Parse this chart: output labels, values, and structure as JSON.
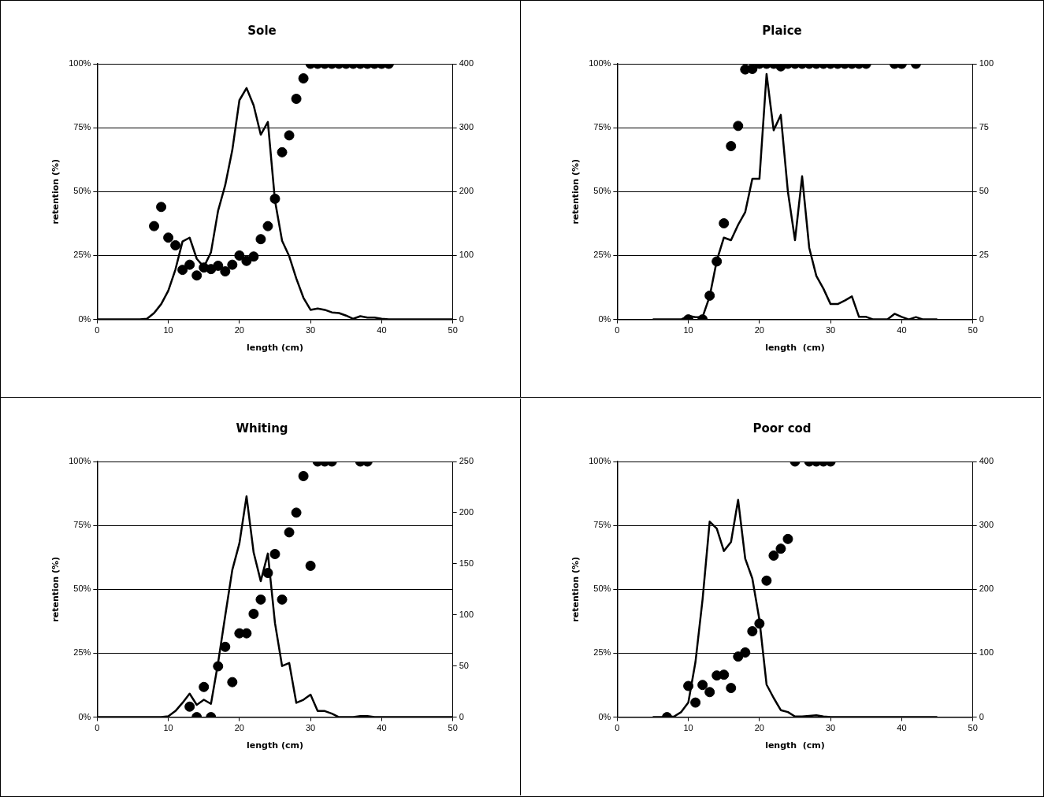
{
  "chart_data": [
    {
      "type": "scatter",
      "title": "Sole",
      "xlabel": "length (cm)",
      "ylabel": "retention (%)",
      "xlim": [
        0,
        50
      ],
      "xticks": [
        0,
        10,
        20,
        30,
        40,
        50
      ],
      "ylim": [
        0,
        100
      ],
      "yticks": [
        {
          "value": 0,
          "label": "0%"
        },
        {
          "value": 25,
          "label": "25%"
        },
        {
          "value": 50,
          "label": "50%"
        },
        {
          "value": 75,
          "label": "75%"
        },
        {
          "value": 100,
          "label": "100%"
        }
      ],
      "y2lim": [
        0,
        400
      ],
      "y2ticks": [
        0,
        100,
        200,
        300,
        400
      ],
      "grid": "y",
      "legend": false,
      "series": [
        {
          "type": "scatter",
          "color": "#000000",
          "marker": "circle",
          "x": [
            8,
            9,
            10,
            11,
            12,
            13,
            14,
            15,
            16,
            17,
            18,
            19,
            20,
            21,
            22,
            23,
            24,
            25,
            26,
            27,
            28,
            29,
            30,
            31,
            32,
            33,
            34,
            35,
            36,
            37,
            38,
            39,
            40,
            41
          ],
          "values": [
            36.5,
            44,
            32,
            29,
            19.4,
            21.4,
            17.2,
            20.3,
            19.7,
            21,
            18.8,
            21.4,
            25,
            22.9,
            24.6,
            31.4,
            36.5,
            47.2,
            65.4,
            72,
            86.3,
            94.3,
            100,
            100,
            100,
            100,
            100,
            100,
            100,
            100,
            100,
            100,
            100,
            100
          ]
        },
        {
          "type": "line",
          "axis": "y2",
          "color": "#000000",
          "marker": "none",
          "x": [
            0,
            6,
            7,
            8,
            9,
            10,
            11,
            12,
            13,
            14,
            15,
            16,
            17,
            18,
            19,
            20,
            21,
            22,
            23,
            24,
            25,
            26,
            27,
            28,
            29,
            30,
            31,
            32,
            33,
            34,
            35,
            36,
            37,
            38,
            39,
            40,
            41,
            45,
            50
          ],
          "values": [
            0,
            0,
            1,
            10,
            24,
            45,
            78,
            122,
            128,
            95,
            82,
            105,
            170,
            210,
            265,
            343,
            362,
            335,
            289,
            309,
            186,
            123,
            99,
            64,
            34,
            15,
            17,
            15,
            11,
            10,
            6,
            1,
            5,
            3,
            3,
            1,
            0,
            0,
            0
          ]
        }
      ]
    },
    {
      "type": "scatter",
      "title": "Plaice",
      "xlabel": "length  (cm)",
      "ylabel": "retention (%)",
      "xlim": [
        0,
        50
      ],
      "xticks": [
        0,
        10,
        20,
        30,
        40,
        50
      ],
      "ylim": [
        0,
        100
      ],
      "yticks": [
        {
          "value": 0,
          "label": "0%"
        },
        {
          "value": 25,
          "label": "25%"
        },
        {
          "value": 50,
          "label": "50%"
        },
        {
          "value": 75,
          "label": "75%"
        },
        {
          "value": 100,
          "label": "100%"
        }
      ],
      "y2lim": [
        0,
        100
      ],
      "y2ticks": [
        0,
        25,
        50,
        75,
        100
      ],
      "grid": "y",
      "legend": false,
      "series": [
        {
          "type": "scatter",
          "color": "#000000",
          "marker": "circle",
          "x": [
            10,
            12,
            13,
            14,
            15,
            16,
            17,
            18,
            19,
            20,
            21,
            22,
            23,
            24,
            25,
            26,
            27,
            28,
            29,
            30,
            31,
            32,
            33,
            34,
            35,
            39,
            40,
            42
          ],
          "values": [
            0,
            0,
            9.3,
            22.7,
            37.6,
            67.8,
            75.7,
            97.8,
            98,
            100,
            100,
            100,
            99,
            100,
            100,
            100,
            100,
            100,
            100,
            100,
            100,
            100,
            100,
            100,
            100,
            100,
            100,
            100
          ]
        },
        {
          "type": "line",
          "axis": "y2",
          "color": "#000000",
          "marker": "none",
          "x": [
            5,
            9,
            10,
            11,
            12,
            13,
            14,
            15,
            16,
            17,
            18,
            19,
            20,
            21,
            22,
            23,
            24,
            25,
            26,
            27,
            28,
            29,
            30,
            31,
            32,
            33,
            34,
            35,
            36,
            37,
            38,
            39,
            40,
            41,
            42,
            43,
            45
          ],
          "values": [
            0,
            0,
            1.4,
            0.9,
            0.9,
            9,
            23,
            32,
            31,
            37,
            42,
            55,
            55,
            96,
            74,
            80,
            50,
            31,
            56,
            28,
            17,
            12,
            6,
            6,
            7.4,
            9,
            1,
            1,
            0,
            0,
            0,
            2.2,
            1,
            0,
            0.9,
            0,
            0
          ]
        }
      ]
    },
    {
      "type": "scatter",
      "title": "Whiting",
      "xlabel": "length (cm)",
      "ylabel": "retention (%)",
      "xlim": [
        0,
        50
      ],
      "xticks": [
        0,
        10,
        20,
        30,
        40,
        50
      ],
      "ylim": [
        0,
        100
      ],
      "yticks": [
        {
          "value": 0,
          "label": "0%"
        },
        {
          "value": 25,
          "label": "25%"
        },
        {
          "value": 50,
          "label": "50%"
        },
        {
          "value": 75,
          "label": "75%"
        },
        {
          "value": 100,
          "label": "100%"
        }
      ],
      "y2lim": [
        0,
        250
      ],
      "y2ticks": [
        0,
        50,
        100,
        150,
        200,
        250
      ],
      "grid": "y",
      "legend": false,
      "series": [
        {
          "type": "scatter",
          "color": "#000000",
          "marker": "circle",
          "x": [
            13,
            14,
            15,
            16,
            17,
            18,
            19,
            20,
            21,
            22,
            23,
            24,
            25,
            26,
            27,
            28,
            29,
            30,
            31,
            32,
            33,
            37,
            38
          ],
          "values": [
            4.1,
            0,
            11.8,
            0,
            19.9,
            27.5,
            13.7,
            32.8,
            32.8,
            40.4,
            46,
            56.4,
            63.8,
            46,
            72.3,
            80,
            94.3,
            59.2,
            100,
            100,
            100,
            100,
            100
          ]
        },
        {
          "type": "line",
          "axis": "y2",
          "color": "#000000",
          "marker": "none",
          "x": [
            0,
            9,
            10,
            11,
            12,
            13,
            14,
            15,
            16,
            17,
            18,
            19,
            20,
            21,
            22,
            23,
            24,
            25,
            26,
            27,
            28,
            29,
            30,
            31,
            32,
            33,
            34,
            36,
            37,
            38,
            39,
            50
          ],
          "values": [
            0,
            0,
            0.8,
            6,
            14,
            23,
            12,
            17,
            13,
            53,
            99,
            144,
            170,
            216,
            161,
            133,
            160,
            92,
            50,
            53,
            14,
            17,
            22,
            6,
            6,
            3.5,
            0,
            0,
            1,
            1,
            0,
            0
          ]
        }
      ]
    },
    {
      "type": "scatter",
      "title": "Poor cod",
      "xlabel": "length  (cm)",
      "ylabel": "retention (%)",
      "xlim": [
        0,
        50
      ],
      "xticks": [
        0,
        10,
        20,
        30,
        40,
        50
      ],
      "ylim": [
        0,
        100
      ],
      "yticks": [
        {
          "value": 0,
          "label": "0%"
        },
        {
          "value": 25,
          "label": "25%"
        },
        {
          "value": 50,
          "label": "50%"
        },
        {
          "value": 75,
          "label": "75%"
        },
        {
          "value": 100,
          "label": "100%"
        }
      ],
      "y2lim": [
        0,
        400
      ],
      "y2ticks": [
        0,
        100,
        200,
        300,
        400
      ],
      "grid": "y",
      "legend": false,
      "series": [
        {
          "type": "scatter",
          "color": "#000000",
          "marker": "circle",
          "x": [
            7,
            10,
            11,
            12,
            13,
            14,
            15,
            16,
            17,
            18,
            19,
            20,
            21,
            22,
            23,
            24,
            25,
            27,
            28,
            29,
            30
          ],
          "values": [
            0,
            12.2,
            5.7,
            12.6,
            9.8,
            16.3,
            16.6,
            11.4,
            23.7,
            25.3,
            33.6,
            36.6,
            53.4,
            63.2,
            65.9,
            69.7,
            100,
            100,
            100,
            100,
            100
          ]
        },
        {
          "type": "line",
          "axis": "y2",
          "color": "#000000",
          "marker": "none",
          "x": [
            5,
            7,
            8,
            9,
            10,
            11,
            12,
            13,
            14,
            15,
            16,
            17,
            18,
            19,
            20,
            21,
            22,
            23,
            24,
            25,
            26,
            28,
            29,
            30,
            45
          ],
          "values": [
            0,
            0,
            1,
            8,
            23,
            86,
            184,
            306,
            295,
            260,
            274,
            340,
            248,
            217,
            152,
            51,
            30,
            11,
            8,
            1,
            1,
            3,
            1,
            0,
            0
          ]
        }
      ]
    }
  ]
}
